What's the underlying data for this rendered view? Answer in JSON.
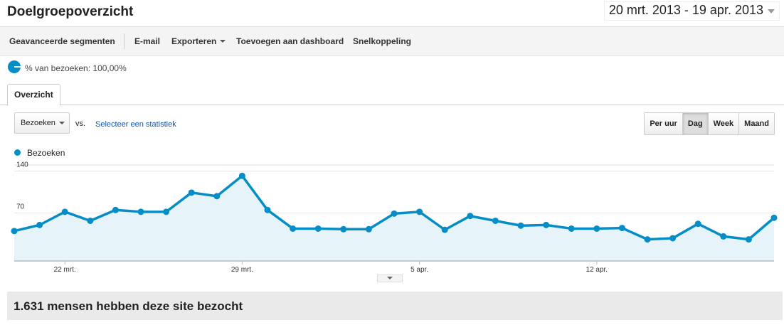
{
  "header": {
    "title": "Doelgroepoverzicht",
    "date_range": "20 mrt. 2013 - 19 apr. 2013"
  },
  "toolbar": {
    "items": [
      "Geavanceerde segmenten",
      "E-mail",
      "Exporteren",
      "Toevoegen aan dashboard",
      "Snelkoppeling"
    ]
  },
  "segment": {
    "label": "% van bezoeken: 100,00%"
  },
  "tabs": [
    "Overzicht"
  ],
  "controls": {
    "metric": "Bezoeken",
    "vs": "vs.",
    "compare_link": "Selecteer een statistiek",
    "granularity": [
      "Per uur",
      "Dag",
      "Week",
      "Maand"
    ],
    "selected": 1
  },
  "chart_data": {
    "type": "line",
    "area": true,
    "grid": true,
    "categories": [
      null,
      null,
      "22 mrt.",
      null,
      null,
      null,
      null,
      null,
      null,
      "29 mrt.",
      null,
      null,
      null,
      null,
      null,
      null,
      "5 apr.",
      null,
      null,
      null,
      null,
      null,
      null,
      "12 apr.",
      null,
      null,
      null,
      null,
      null,
      null,
      null
    ],
    "series": [
      {
        "name": "Bezoeken",
        "color": "#058dc7",
        "values": [
          40,
          50,
          72,
          57,
          75,
          72,
          72,
          104,
          98,
          132,
          75,
          44,
          44,
          43,
          43,
          69,
          72,
          42,
          65,
          57,
          49,
          50,
          44,
          44,
          45,
          26,
          28,
          52,
          31,
          26,
          62
        ]
      }
    ],
    "ylim": [
      -10,
      150
    ],
    "yticks": [
      70,
      140
    ]
  },
  "summary": {
    "title": "1.631 mensen hebben deze site bezocht"
  }
}
